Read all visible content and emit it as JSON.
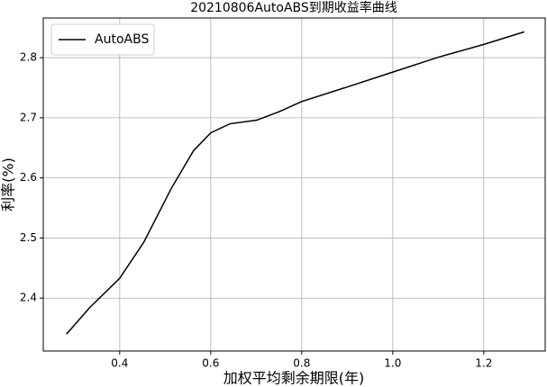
{
  "chart_data": {
    "type": "line",
    "title": "20210806AutoABS到期收益率曲线",
    "xlabel": "加权平均剩余期限(年)",
    "ylabel": "利率(%)",
    "x": [
      0.283,
      0.335,
      0.4,
      0.453,
      0.513,
      0.562,
      0.6,
      0.642,
      0.701,
      0.75,
      0.8,
      0.899,
      1.0,
      1.101,
      1.2,
      1.289
    ],
    "series": [
      {
        "name": "AutoABS",
        "color": "#000000",
        "values": [
          2.34,
          2.385,
          2.433,
          2.493,
          2.582,
          2.645,
          2.675,
          2.69,
          2.696,
          2.71,
          2.727,
          2.751,
          2.776,
          2.801,
          2.822,
          2.843
        ]
      }
    ],
    "xlim": [
      0.232,
      1.335
    ],
    "ylim": [
      2.312,
      2.866
    ],
    "xticks": [
      0.4,
      0.6,
      0.8,
      {
        "value": 1,
        "label": "1.0"
      },
      1.2
    ],
    "yticks": [
      2.4,
      2.5,
      2.6,
      2.7,
      2.8
    ],
    "grid": true,
    "legend": "upper-left"
  }
}
